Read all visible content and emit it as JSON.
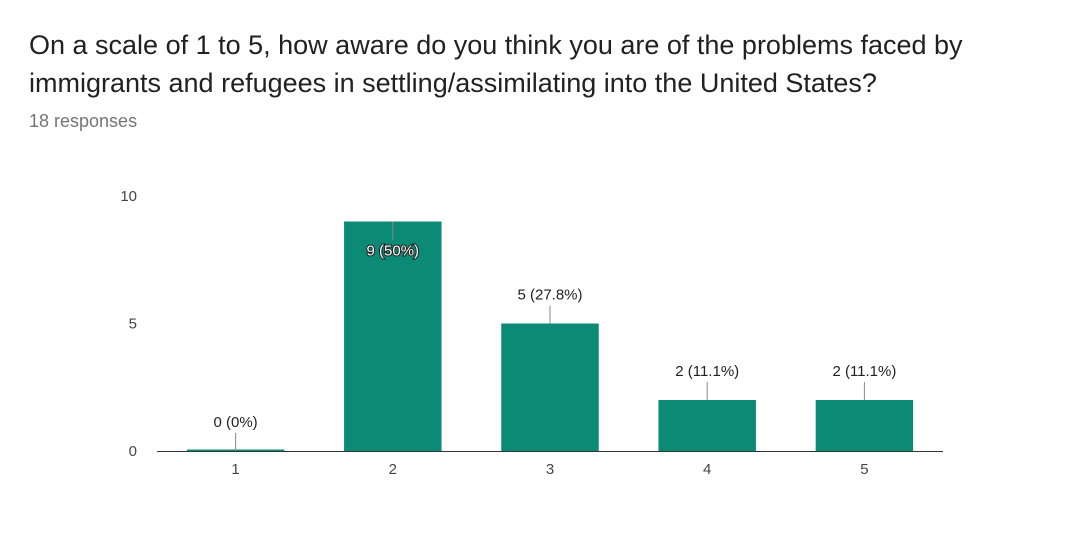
{
  "question": "On a scale of 1 to 5, how aware do you think you are of the problems faced by immigrants and refugees in settling/assimilating into the United States?",
  "responses_label": "18 responses",
  "colors": {
    "bar": "#0b8a76",
    "axis": "#333333",
    "leader": "#888888"
  },
  "chart_data": {
    "type": "bar",
    "categories": [
      "1",
      "2",
      "3",
      "4",
      "5"
    ],
    "values": [
      0,
      9,
      5,
      2,
      2
    ],
    "labels": [
      "0 (0%)",
      "9 (50%)",
      "5 (27.8%)",
      "2 (11.1%)",
      "2 (11.1%)"
    ],
    "ylim": [
      0,
      10
    ],
    "yticks": [
      0,
      5,
      10
    ],
    "grid": false,
    "legend": "none"
  }
}
